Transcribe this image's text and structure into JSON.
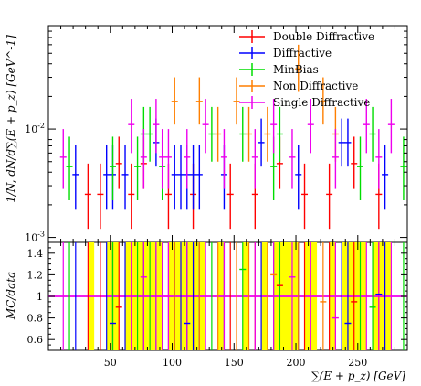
{
  "chart_data": [
    {
      "type": "scatter",
      "panel": "main",
      "xlabel": "∑(E + p_z) [GeV]",
      "ylabel": "1/N, dN/d∑(E + p_z) [GeV^-1]",
      "xlim": [
        0,
        290
      ],
      "ylim": [
        0.0009,
        0.09
      ],
      "yscale": "log",
      "x_ticks": [
        50,
        100,
        150,
        200,
        250
      ],
      "y_tick_labels": [
        "10^-3",
        "10^-2"
      ],
      "legend_position": "top-right",
      "series": [
        {
          "name": "Double Diffractive",
          "color": "#ff0000",
          "points": [
            {
              "x": 32,
              "y": 0.0025,
              "hi": 0.0048,
              "lo": 0.0012
            },
            {
              "x": 42,
              "y": 0.0025,
              "hi": 0.0048,
              "lo": 0.0012
            },
            {
              "x": 57,
              "y": 0.0048,
              "hi": 0.0085,
              "lo": 0.0028
            },
            {
              "x": 67,
              "y": 0.0025,
              "hi": 0.0048,
              "lo": 0.0012
            },
            {
              "x": 77,
              "y": 0.0048,
              "hi": 0.0085,
              "lo": 0.0028
            },
            {
              "x": 97,
              "y": 0.0025,
              "hi": 0.0048,
              "lo": 0.0012
            },
            {
              "x": 117,
              "y": 0.0025,
              "hi": 0.0048,
              "lo": 0.0012
            },
            {
              "x": 147,
              "y": 0.0025,
              "hi": 0.0048,
              "lo": 0.0012
            },
            {
              "x": 167,
              "y": 0.0025,
              "hi": 0.0048,
              "lo": 0.0012
            },
            {
              "x": 187,
              "y": 0.0048,
              "hi": 0.0085,
              "lo": 0.0028
            },
            {
              "x": 207,
              "y": 0.0025,
              "hi": 0.0048,
              "lo": 0.0012
            },
            {
              "x": 227,
              "y": 0.0025,
              "hi": 0.0048,
              "lo": 0.0012
            },
            {
              "x": 247,
              "y": 0.0048,
              "hi": 0.0085,
              "lo": 0.0028
            },
            {
              "x": 267,
              "y": 0.0025,
              "hi": 0.0048,
              "lo": 0.0012
            }
          ]
        },
        {
          "name": "Diffractive",
          "color": "#0000ff",
          "points": [
            {
              "x": 22,
              "y": 0.0038,
              "hi": 0.0072,
              "lo": 0.0018
            },
            {
              "x": 47,
              "y": 0.0038,
              "hi": 0.0072,
              "lo": 0.0018
            },
            {
              "x": 52,
              "y": 0.0038,
              "hi": 0.0072,
              "lo": 0.0018
            },
            {
              "x": 62,
              "y": 0.0038,
              "hi": 0.0072,
              "lo": 0.0018
            },
            {
              "x": 87,
              "y": 0.0075,
              "hi": 0.0125,
              "lo": 0.0045
            },
            {
              "x": 102,
              "y": 0.0038,
              "hi": 0.0072,
              "lo": 0.0018
            },
            {
              "x": 107,
              "y": 0.0038,
              "hi": 0.0072,
              "lo": 0.0018
            },
            {
              "x": 112,
              "y": 0.0038,
              "hi": 0.0072,
              "lo": 0.0018
            },
            {
              "x": 117,
              "y": 0.0038,
              "hi": 0.0072,
              "lo": 0.0018
            },
            {
              "x": 122,
              "y": 0.0038,
              "hi": 0.0072,
              "lo": 0.0018
            },
            {
              "x": 142,
              "y": 0.0038,
              "hi": 0.0072,
              "lo": 0.0018
            },
            {
              "x": 172,
              "y": 0.0075,
              "hi": 0.0125,
              "lo": 0.0045
            },
            {
              "x": 202,
              "y": 0.0038,
              "hi": 0.0072,
              "lo": 0.0018
            },
            {
              "x": 237,
              "y": 0.0075,
              "hi": 0.0125,
              "lo": 0.0045
            },
            {
              "x": 242,
              "y": 0.0075,
              "hi": 0.0125,
              "lo": 0.0045
            },
            {
              "x": 272,
              "y": 0.0038,
              "hi": 0.0072,
              "lo": 0.0018
            }
          ]
        },
        {
          "name": "MinBias",
          "color": "#00dd00",
          "points": [
            {
              "x": 17,
              "y": 0.0045,
              "hi": 0.0085,
              "lo": 0.0022
            },
            {
              "x": 52,
              "y": 0.0045,
              "hi": 0.0085,
              "lo": 0.0022
            },
            {
              "x": 72,
              "y": 0.0045,
              "hi": 0.0085,
              "lo": 0.0022
            },
            {
              "x": 77,
              "y": 0.009,
              "hi": 0.016,
              "lo": 0.005
            },
            {
              "x": 82,
              "y": 0.009,
              "hi": 0.016,
              "lo": 0.005
            },
            {
              "x": 92,
              "y": 0.0045,
              "hi": 0.0085,
              "lo": 0.0022
            },
            {
              "x": 132,
              "y": 0.009,
              "hi": 0.016,
              "lo": 0.005
            },
            {
              "x": 157,
              "y": 0.009,
              "hi": 0.016,
              "lo": 0.005
            },
            {
              "x": 182,
              "y": 0.0045,
              "hi": 0.0085,
              "lo": 0.0022
            },
            {
              "x": 187,
              "y": 0.009,
              "hi": 0.016,
              "lo": 0.005
            },
            {
              "x": 252,
              "y": 0.0045,
              "hi": 0.0085,
              "lo": 0.0022
            },
            {
              "x": 262,
              "y": 0.009,
              "hi": 0.016,
              "lo": 0.005
            },
            {
              "x": 287,
              "y": 0.0045,
              "hi": 0.0085,
              "lo": 0.0022
            }
          ]
        },
        {
          "name": "Non Diffractive",
          "color": "#ff7f00",
          "points": [
            {
              "x": 102,
              "y": 0.018,
              "hi": 0.03,
              "lo": 0.011
            },
            {
              "x": 122,
              "y": 0.018,
              "hi": 0.03,
              "lo": 0.011
            },
            {
              "x": 137,
              "y": 0.009,
              "hi": 0.016,
              "lo": 0.005
            },
            {
              "x": 152,
              "y": 0.018,
              "hi": 0.03,
              "lo": 0.011
            },
            {
              "x": 162,
              "y": 0.009,
              "hi": 0.016,
              "lo": 0.005
            },
            {
              "x": 177,
              "y": 0.009,
              "hi": 0.016,
              "lo": 0.005
            },
            {
              "x": 202,
              "y": 0.036,
              "hi": 0.06,
              "lo": 0.022
            },
            {
              "x": 222,
              "y": 0.018,
              "hi": 0.03,
              "lo": 0.011
            },
            {
              "x": 232,
              "y": 0.009,
              "hi": 0.016,
              "lo": 0.005
            }
          ]
        },
        {
          "name": "Single Diffractive",
          "color": "#ee00ee",
          "points": [
            {
              "x": 12,
              "y": 0.0055,
              "hi": 0.01,
              "lo": 0.0028
            },
            {
              "x": 67,
              "y": 0.011,
              "hi": 0.019,
              "lo": 0.006
            },
            {
              "x": 77,
              "y": 0.0055,
              "hi": 0.01,
              "lo": 0.0028
            },
            {
              "x": 87,
              "y": 0.011,
              "hi": 0.019,
              "lo": 0.006
            },
            {
              "x": 92,
              "y": 0.0055,
              "hi": 0.01,
              "lo": 0.0028
            },
            {
              "x": 97,
              "y": 0.0055,
              "hi": 0.01,
              "lo": 0.0028
            },
            {
              "x": 112,
              "y": 0.0055,
              "hi": 0.01,
              "lo": 0.0028
            },
            {
              "x": 127,
              "y": 0.011,
              "hi": 0.019,
              "lo": 0.006
            },
            {
              "x": 142,
              "y": 0.0055,
              "hi": 0.01,
              "lo": 0.0028
            },
            {
              "x": 167,
              "y": 0.0055,
              "hi": 0.01,
              "lo": 0.0028
            },
            {
              "x": 182,
              "y": 0.011,
              "hi": 0.019,
              "lo": 0.006
            },
            {
              "x": 197,
              "y": 0.0055,
              "hi": 0.01,
              "lo": 0.0028
            },
            {
              "x": 212,
              "y": 0.011,
              "hi": 0.019,
              "lo": 0.006
            },
            {
              "x": 232,
              "y": 0.0055,
              "hi": 0.01,
              "lo": 0.0028
            },
            {
              "x": 257,
              "y": 0.011,
              "hi": 0.019,
              "lo": 0.006
            },
            {
              "x": 267,
              "y": 0.0055,
              "hi": 0.01,
              "lo": 0.0028
            },
            {
              "x": 277,
              "y": 0.011,
              "hi": 0.019,
              "lo": 0.006
            }
          ]
        }
      ]
    },
    {
      "type": "scatter",
      "panel": "ratio",
      "ylabel": "MC/data",
      "xlabel": "∑(E + p_z) [GeV]",
      "xlim": [
        0,
        290
      ],
      "ylim": [
        0.5,
        1.5
      ],
      "y_ticks": [
        0.6,
        0.8,
        1,
        1.2,
        1.4
      ],
      "reference_line": 1,
      "band_color": "#ffff00",
      "band_ranges": [
        [
          32,
          37
        ],
        [
          47,
          57
        ],
        [
          62,
          92
        ],
        [
          97,
          127
        ],
        [
          137,
          142
        ],
        [
          157,
          162
        ],
        [
          172,
          177
        ],
        [
          182,
          202
        ],
        [
          207,
          217
        ],
        [
          227,
          232
        ],
        [
          237,
          257
        ],
        [
          262,
          277
        ]
      ],
      "series": [
        {
          "name": "Double Diffractive",
          "color": "#ff0000",
          "points": [
            {
              "x": 57,
              "y": 0.9
            },
            {
              "x": 187,
              "y": 1.1
            },
            {
              "x": 247,
              "y": 0.95
            }
          ]
        },
        {
          "name": "Diffractive",
          "color": "#0000ff",
          "points": [
            {
              "x": 52,
              "y": 0.75
            },
            {
              "x": 112,
              "y": 0.75
            },
            {
              "x": 242,
              "y": 0.75
            },
            {
              "x": 267,
              "y": 1.02
            }
          ]
        },
        {
          "name": "MinBias",
          "color": "#00dd00",
          "points": [
            {
              "x": 157,
              "y": 1.25
            },
            {
              "x": 262,
              "y": 0.9
            }
          ]
        },
        {
          "name": "Non Diffractive",
          "color": "#ff7f00",
          "points": [
            {
              "x": 182,
              "y": 1.2
            },
            {
              "x": 222,
              "y": 0.95
            }
          ]
        },
        {
          "name": "Single Diffractive",
          "color": "#ee00ee",
          "points": [
            {
              "x": 77,
              "y": 1.18
            },
            {
              "x": 197,
              "y": 1.18
            },
            {
              "x": 232,
              "y": 0.8
            }
          ]
        }
      ]
    }
  ]
}
